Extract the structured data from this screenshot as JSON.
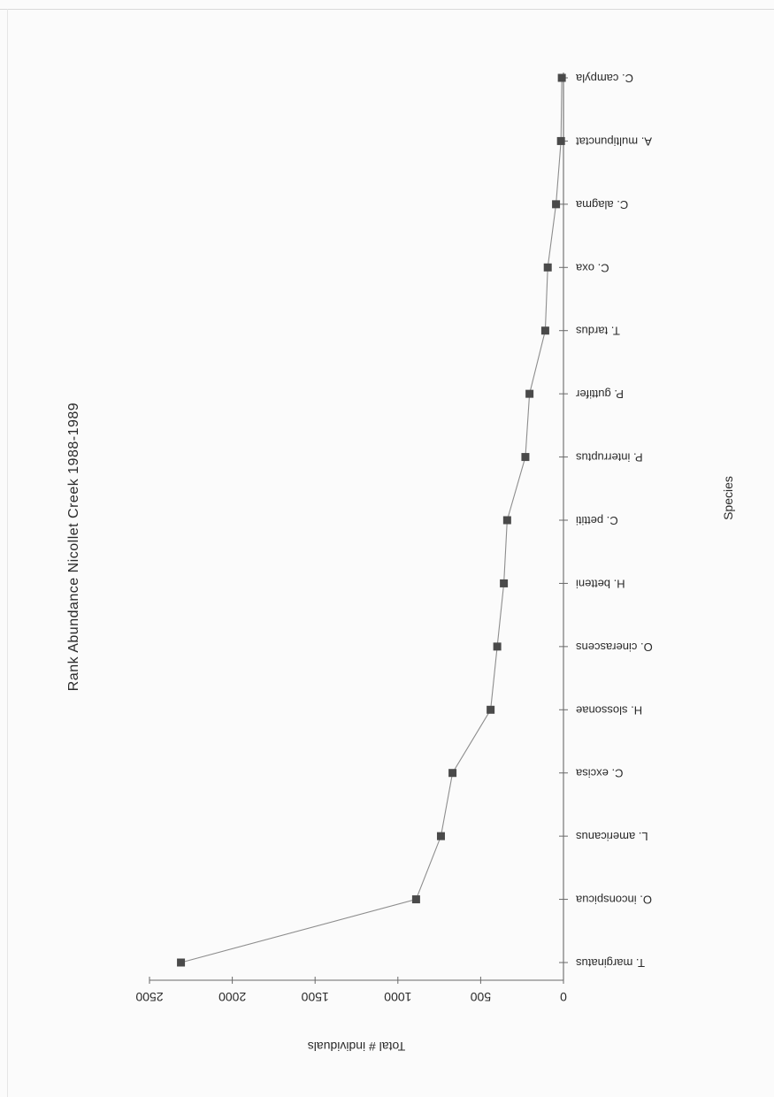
{
  "chart_data": {
    "type": "line",
    "title": "Rank Abundance Nicollet Creek 1988-1989",
    "xlabel": "Species",
    "ylabel": "Total # individuals",
    "categories": [
      "T. marginatus",
      "O. inconspicua",
      "L. americanus",
      "C. excisa",
      "H. slossonae",
      "O. cinerascens",
      "H. betteni",
      "C. pettiti",
      "P. interruptus",
      "P. guttifer",
      "T. tardus",
      "C. oxa",
      "C. alagma",
      "A. multipunctat",
      "C. campyla"
    ],
    "values": [
      2310,
      890,
      740,
      670,
      440,
      400,
      360,
      340,
      230,
      205,
      110,
      95,
      45,
      15,
      10
    ],
    "ylim": [
      0,
      2500
    ],
    "yticks": [
      0,
      500,
      1000,
      1500,
      2000,
      2500
    ],
    "grid": false,
    "marker": "square",
    "orientation": "rotated-180"
  }
}
